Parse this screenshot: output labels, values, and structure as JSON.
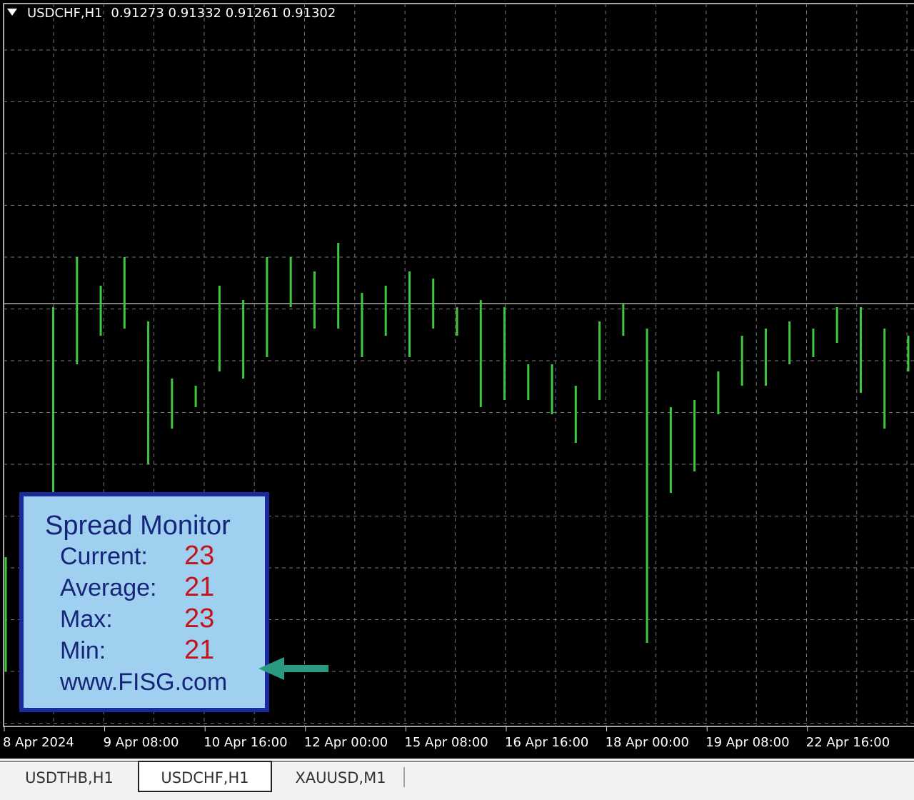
{
  "header": {
    "symbol": "USDCHF,H1",
    "ohlc": [
      0.91273,
      0.91332,
      0.91261,
      0.91302
    ]
  },
  "chart": {
    "type": "bar-hl",
    "color": "#3fc83f",
    "ylim": [
      0.9012,
      0.9207
    ],
    "high": [
      0.9059,
      0.9077,
      0.9129,
      0.9143,
      0.9135,
      0.9143,
      0.9125,
      0.9109,
      0.9107,
      0.9135,
      0.9131,
      0.9143,
      0.9143,
      0.9139,
      0.9147,
      0.9133,
      0.9135,
      0.9139,
      0.9137,
      0.9129,
      0.9131,
      0.9129,
      0.9113,
      0.9113,
      0.9107,
      0.9125,
      0.913,
      0.9123,
      0.9101,
      0.9103,
      0.9111,
      0.9121,
      0.9123,
      0.9125,
      0.9123,
      0.9129,
      0.9129,
      0.9123,
      0.9121
    ],
    "low": [
      0.9027,
      0.9055,
      0.9077,
      0.9113,
      0.9121,
      0.9123,
      0.9085,
      0.9095,
      0.9101,
      0.9111,
      0.9109,
      0.9115,
      0.9129,
      0.9123,
      0.9123,
      0.9115,
      0.9121,
      0.9115,
      0.9123,
      0.9121,
      0.9101,
      0.9103,
      0.9103,
      0.9099,
      0.9091,
      0.9103,
      0.9121,
      0.9035,
      0.9077,
      0.9083,
      0.9099,
      0.9107,
      0.9107,
      0.9113,
      0.9115,
      0.9119,
      0.9105,
      0.9095,
      0.9111
    ],
    "x_labels": [
      "8 Apr 2024",
      "9 Apr 08:00",
      "10 Apr 16:00",
      "12 Apr 00:00",
      "15 Apr 08:00",
      "16 Apr 16:00",
      "18 Apr 00:00",
      "19 Apr 08:00",
      "22 Apr 16:00"
    ]
  },
  "spread_monitor": {
    "title": "Spread Monitor",
    "rows": [
      {
        "label": "Current:",
        "value": 23
      },
      {
        "label": "Average:",
        "value": 21
      },
      {
        "label": "Max:",
        "value": 23
      },
      {
        "label": "Min:",
        "value": 21
      }
    ],
    "link": "www.FISG.com"
  },
  "tabs": [
    "USDTHB,H1",
    "USDCHF,H1",
    "XAUUSD,M1"
  ]
}
